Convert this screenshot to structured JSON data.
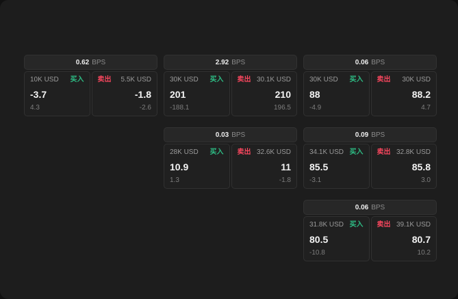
{
  "labels": {
    "bps": "BPS",
    "buy": "买入",
    "sell": "卖出"
  },
  "colors": {
    "buy": "#2ebd85",
    "sell": "#f6465d",
    "bg": "#1d1d1d"
  },
  "cards": [
    {
      "bps": "0.62",
      "buy": {
        "amount": "10K USD",
        "value": "-3.7",
        "delta": "4.3"
      },
      "sell": {
        "amount": "5.5K USD",
        "value": "-1.8",
        "delta": "-2.6"
      }
    },
    {
      "bps": "2.92",
      "buy": {
        "amount": "30K USD",
        "value": "201",
        "delta": "-188.1"
      },
      "sell": {
        "amount": "30.1K USD",
        "value": "210",
        "delta": "196.5"
      }
    },
    {
      "bps": "0.06",
      "buy": {
        "amount": "30K USD",
        "value": "88",
        "delta": "-4.9"
      },
      "sell": {
        "amount": "30K USD",
        "value": "88.2",
        "delta": "4.7"
      }
    },
    {
      "bps": "0.03",
      "buy": {
        "amount": "28K USD",
        "value": "10.9",
        "delta": "1.3"
      },
      "sell": {
        "amount": "32.6K USD",
        "value": "11",
        "delta": "-1.8"
      }
    },
    {
      "bps": "0.09",
      "buy": {
        "amount": "34.1K USD",
        "value": "85.5",
        "delta": "-3.1"
      },
      "sell": {
        "amount": "32.8K USD",
        "value": "85.8",
        "delta": "3.0"
      }
    },
    {
      "bps": "0.06",
      "buy": {
        "amount": "31.8K USD",
        "value": "80.5",
        "delta": "-10.8"
      },
      "sell": {
        "amount": "39.1K USD",
        "value": "80.7",
        "delta": "10.2"
      }
    }
  ]
}
